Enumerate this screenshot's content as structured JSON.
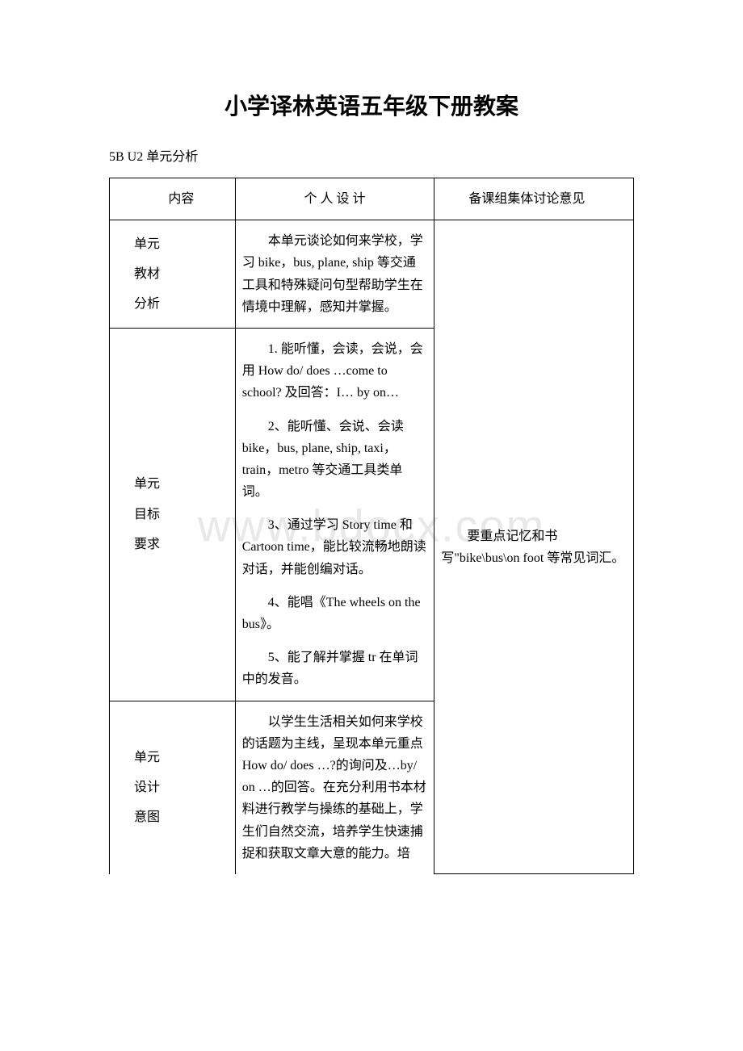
{
  "watermark": "www.bdocx.com",
  "title": "小学译林英语五年级下册教案",
  "subtitle": "5B U2 单元分析",
  "colors": {
    "background": "#ffffff",
    "text": "#000000",
    "border": "#000000",
    "watermark": "#e8e8e8"
  },
  "typography": {
    "title_fontsize": 28,
    "title_family": "SimHei",
    "body_fontsize": 16,
    "body_family": "SimSun"
  },
  "table": {
    "header": {
      "c1": "内容",
      "c2": "个 人 设 计",
      "c3": "　　备课组集体讨论意见"
    },
    "rows": [
      {
        "label_lines": [
          "单元",
          "教材",
          "分析"
        ],
        "content": "本单元谈论如何来学校，学习 bike，bus, plane, ship 等交通工具和特殊疑问句型帮助学生在情境中理解，感知并掌握。"
      },
      {
        "label_lines": [
          "单元",
          "目标",
          "要求"
        ],
        "paras": [
          "1. 能听懂，会读，会说，会用 How do/ does …come to school? 及回答：I… by on…",
          "2、能听懂、会说、会读 bike，bus, plane, ship, taxi，train，metro 等交通工具类单词。",
          "3、通过学习 Story time 和 Cartoon time，能比较流畅地朗读对话，并能创编对话。",
          "4、能唱《The wheels on the bus》。",
          "5、能了解并掌握 tr 在单词中的发音。"
        ]
      },
      {
        "label_lines": [
          "单元",
          "设计",
          "意图"
        ],
        "content": "以学生生活相关如何来学校的话题为主线，呈现本单元重点 How do/ does …?的询问及…by/ on …的回答。在充分利用书本材料进行教学与操练的基础上，学生们自然交流，培养学生快速捕捉和获取文章大意的能力。培"
      }
    ],
    "side_note": "　　要重点记忆和书写\"bike\\bus\\on foot 等常见词汇。"
  }
}
